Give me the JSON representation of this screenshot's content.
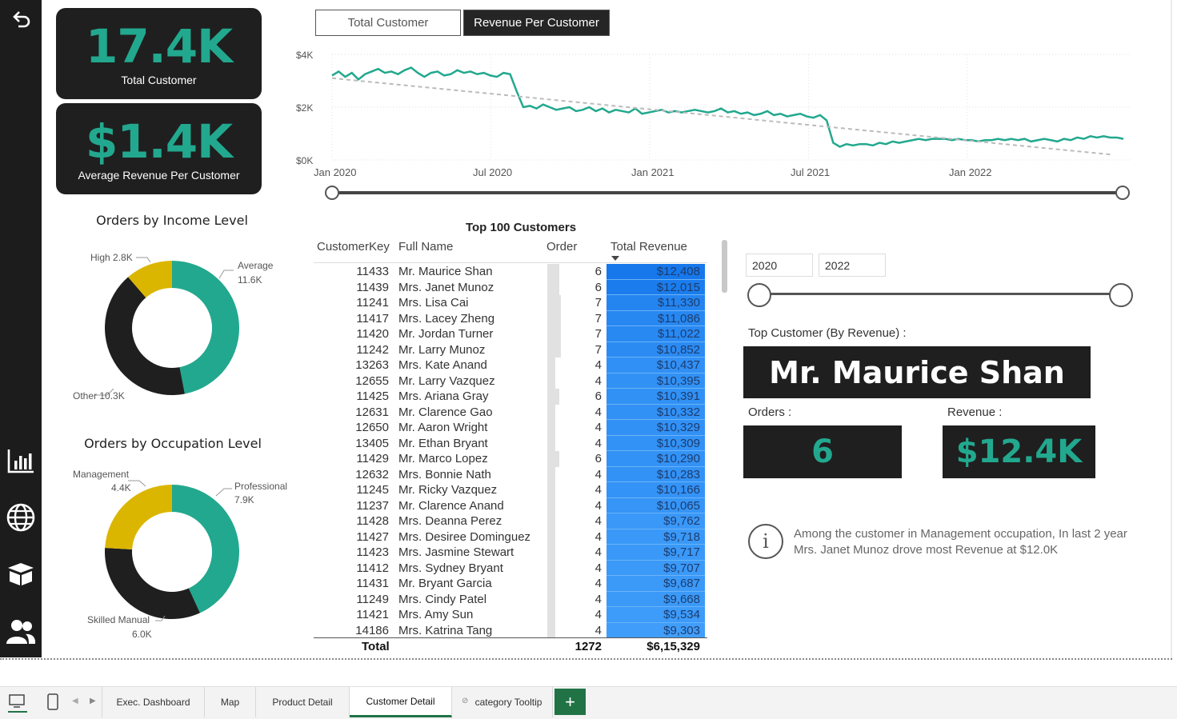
{
  "kpis": {
    "total_customer": {
      "value": "17.4K",
      "label": "Total Customer"
    },
    "avg_revenue": {
      "value": "$1.4K",
      "label": "Average Revenue Per Customer"
    }
  },
  "toggle": {
    "btn1": "Total Customer",
    "btn2": "Revenue Per Customer"
  },
  "chart_data": [
    {
      "type": "line",
      "title": "",
      "y_ticks": [
        "$4K",
        "$2K",
        "$0K"
      ],
      "ylim": [
        0,
        4000
      ],
      "x_ticks": [
        "Jan 2020",
        "Jul 2020",
        "Jan 2021",
        "Jul 2021",
        "Jan 2022"
      ],
      "series": [
        {
          "values": [
            3200,
            3350,
            3150,
            3300,
            3050,
            3250,
            3350,
            3450,
            3300,
            3350,
            3250,
            3400,
            3500,
            3300,
            3150,
            3300,
            3350,
            3200,
            3250,
            3400,
            3300,
            3350,
            3250,
            3300,
            3200,
            3150,
            3300,
            3250,
            2600,
            2000,
            2050,
            1950,
            2100,
            2000,
            1900,
            1950,
            2000,
            1850,
            1900,
            2000,
            1850,
            1950,
            1800,
            1900,
            1850,
            1800,
            1950,
            1750,
            1800,
            1850,
            1900,
            1800,
            1850,
            1800,
            1850,
            1900,
            1850,
            1800,
            1850,
            1950,
            1800,
            1850,
            1750,
            1800,
            1700,
            1750,
            1850,
            1700,
            1750,
            1650,
            1700,
            1750,
            1650,
            1600,
            1700,
            1500,
            650,
            500,
            600,
            550,
            600,
            600,
            550,
            650,
            600,
            700,
            650,
            700,
            750,
            800,
            750,
            800,
            800,
            800,
            750,
            800,
            750,
            750,
            700,
            750,
            750,
            800,
            750,
            800,
            750,
            800,
            700,
            750,
            800,
            750,
            700,
            800,
            750,
            850,
            800,
            900,
            850,
            900,
            850,
            850,
            800
          ]
        },
        {
          "values": [
            3100,
            200
          ]
        }
      ]
    },
    {
      "type": "pie",
      "title": "Orders by Income Level",
      "categories": [
        "Average",
        "Other",
        "High"
      ],
      "values": [
        11.6,
        10.3,
        2.8
      ],
      "labels": [
        "11.6K",
        "Other 10.3K",
        "High 2.8K"
      ],
      "colors": [
        "#22a88e",
        "#1f1f1f",
        "#dbb600"
      ]
    },
    {
      "type": "pie",
      "title": "Orders by Occupation Level",
      "categories": [
        "Professional",
        "Skilled Manual",
        "Management"
      ],
      "values": [
        7.9,
        6.0,
        4.4
      ],
      "labels": [
        "7.9K",
        "6.0K",
        "4.4K"
      ],
      "colors": [
        "#22a88e",
        "#1f1f1f",
        "#dbb600"
      ]
    }
  ],
  "table": {
    "title": "Top 100 Customers",
    "headers": {
      "key": "CustomerKey",
      "name": "Full Name",
      "order": "Order",
      "rev": "Total Revenue"
    },
    "rows": [
      [
        "11433",
        "Mr. Maurice Shan",
        "6",
        "$12,408"
      ],
      [
        "11439",
        "Mrs. Janet Munoz",
        "6",
        "$12,015"
      ],
      [
        "11241",
        "Mrs. Lisa Cai",
        "7",
        "$11,330"
      ],
      [
        "11417",
        "Mrs. Lacey Zheng",
        "7",
        "$11,086"
      ],
      [
        "11420",
        "Mr. Jordan Turner",
        "7",
        "$11,022"
      ],
      [
        "11242",
        "Mr. Larry Munoz",
        "7",
        "$10,852"
      ],
      [
        "13263",
        "Mrs. Kate Anand",
        "4",
        "$10,437"
      ],
      [
        "12655",
        "Mr. Larry Vazquez",
        "4",
        "$10,395"
      ],
      [
        "11425",
        "Mrs. Ariana Gray",
        "6",
        "$10,391"
      ],
      [
        "12631",
        "Mr. Clarence Gao",
        "4",
        "$10,332"
      ],
      [
        "12650",
        "Mr. Aaron Wright",
        "4",
        "$10,329"
      ],
      [
        "13405",
        "Mr. Ethan Bryant",
        "4",
        "$10,309"
      ],
      [
        "11429",
        "Mr. Marco Lopez",
        "6",
        "$10,290"
      ],
      [
        "12632",
        "Mrs. Bonnie Nath",
        "4",
        "$10,283"
      ],
      [
        "11245",
        "Mr. Ricky Vazquez",
        "4",
        "$10,166"
      ],
      [
        "11237",
        "Mr. Clarence Anand",
        "4",
        "$10,065"
      ],
      [
        "11428",
        "Mrs. Deanna Perez",
        "4",
        "$9,762"
      ],
      [
        "11427",
        "Mrs. Desiree Dominguez",
        "4",
        "$9,718"
      ],
      [
        "11423",
        "Mrs. Jasmine Stewart",
        "4",
        "$9,717"
      ],
      [
        "11412",
        "Mrs. Sydney Bryant",
        "4",
        "$9,707"
      ],
      [
        "11431",
        "Mr. Bryant Garcia",
        "4",
        "$9,687"
      ],
      [
        "11249",
        "Mrs. Cindy Patel",
        "4",
        "$9,668"
      ],
      [
        "11421",
        "Mrs. Amy Sun",
        "4",
        "$9,534"
      ],
      [
        "14186",
        "Mrs. Katrina Tang",
        "4",
        "$9,303"
      ]
    ],
    "total": {
      "label": "Total",
      "order": "1272",
      "rev": "$6,15,329"
    }
  },
  "year_filter": {
    "from": "2020",
    "to": "2022"
  },
  "top_customer": {
    "label": "Top Customer (By Revenue) :",
    "name": "Mr. Maurice Shan",
    "orders_label": "Orders :",
    "orders": "6",
    "revenue_label": "Revenue :",
    "revenue": "$12.4K"
  },
  "insight": {
    "line1": "Among the customer in Management occupation, In last 2 year",
    "line2": "Mrs. Janet Munoz drove most Revenue at $12.0K"
  },
  "footer": {
    "tabs": [
      "Exec. Dashboard",
      "Map",
      "Product Detail",
      "Customer Detail",
      "category Tooltip"
    ],
    "add": "+"
  },
  "colors": {
    "accent": "#22a88e",
    "dark": "#1f1f1f",
    "yellow": "#dbb600",
    "blue": "#2b8ef3"
  }
}
